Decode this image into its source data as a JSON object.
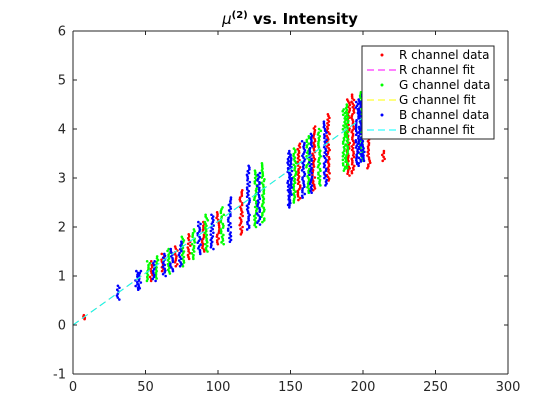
{
  "chart_data": {
    "type": "scatter",
    "title_main": "μ",
    "title_sup": "(2)",
    "title_rest": " vs. Intensity",
    "xlim": [
      0,
      300
    ],
    "ylim": [
      -1,
      6
    ],
    "xticks": [
      0,
      50,
      100,
      150,
      200,
      250,
      300
    ],
    "yticks": [
      -1,
      0,
      1,
      2,
      3,
      4,
      5,
      6
    ],
    "grid": false,
    "legend_position": "top-right",
    "scatter_series": [
      {
        "name": "R channel data",
        "color": "#ff0000",
        "clusters": [
          {
            "x": 8,
            "ymin": 0.12,
            "ymax": 0.2
          },
          {
            "x": 54,
            "ymin": 0.9,
            "ymax": 1.3
          },
          {
            "x": 62,
            "ymin": 1.1,
            "ymax": 1.45
          },
          {
            "x": 71,
            "ymin": 1.2,
            "ymax": 1.6
          },
          {
            "x": 80,
            "ymin": 1.35,
            "ymax": 1.85
          },
          {
            "x": 90,
            "ymin": 1.5,
            "ymax": 2.1
          },
          {
            "x": 100,
            "ymin": 1.65,
            "ymax": 2.3
          },
          {
            "x": 116,
            "ymin": 1.85,
            "ymax": 2.75
          },
          {
            "x": 156,
            "ymin": 2.55,
            "ymax": 3.7
          },
          {
            "x": 166,
            "ymin": 2.75,
            "ymax": 4.05
          },
          {
            "x": 176,
            "ymin": 2.95,
            "ymax": 4.3
          },
          {
            "x": 190,
            "ymin": 3.05,
            "ymax": 4.6
          },
          {
            "x": 193,
            "ymin": 3.1,
            "ymax": 4.7
          },
          {
            "x": 204,
            "ymin": 3.2,
            "ymax": 4.85
          },
          {
            "x": 214,
            "ymin": 3.35,
            "ymax": 3.55
          }
        ]
      },
      {
        "name": "G channel data",
        "color": "#00ff00",
        "clusters": [
          {
            "x": 52,
            "ymin": 0.9,
            "ymax": 1.3
          },
          {
            "x": 58,
            "ymin": 0.95,
            "ymax": 1.4
          },
          {
            "x": 66,
            "ymin": 1.05,
            "ymax": 1.55
          },
          {
            "x": 76,
            "ymin": 1.2,
            "ymax": 1.8
          },
          {
            "x": 83,
            "ymin": 1.35,
            "ymax": 1.95
          },
          {
            "x": 92,
            "ymin": 1.5,
            "ymax": 2.25
          },
          {
            "x": 103,
            "ymin": 1.65,
            "ymax": 2.4
          },
          {
            "x": 126,
            "ymin": 2.0,
            "ymax": 3.15
          },
          {
            "x": 131,
            "ymin": 2.1,
            "ymax": 3.3
          },
          {
            "x": 153,
            "ymin": 2.5,
            "ymax": 3.6
          },
          {
            "x": 162,
            "ymin": 2.7,
            "ymax": 3.85
          },
          {
            "x": 170,
            "ymin": 2.85,
            "ymax": 4.0
          },
          {
            "x": 187,
            "ymin": 3.15,
            "ymax": 4.4
          },
          {
            "x": 189,
            "ymin": 3.2,
            "ymax": 4.5
          },
          {
            "x": 199,
            "ymin": 3.35,
            "ymax": 4.75
          }
        ]
      },
      {
        "name": "B channel data",
        "color": "#0000ff",
        "clusters": [
          {
            "x": 31,
            "ymin": 0.52,
            "ymax": 0.8
          },
          {
            "x": 44,
            "ymin": 0.72,
            "ymax": 1.1
          },
          {
            "x": 46,
            "ymin": 0.75,
            "ymax": 1.1
          },
          {
            "x": 56,
            "ymin": 0.9,
            "ymax": 1.3
          },
          {
            "x": 63,
            "ymin": 1.0,
            "ymax": 1.45
          },
          {
            "x": 68,
            "ymin": 1.1,
            "ymax": 1.55
          },
          {
            "x": 74,
            "ymin": 1.2,
            "ymax": 1.7
          },
          {
            "x": 87,
            "ymin": 1.45,
            "ymax": 2.1
          },
          {
            "x": 96,
            "ymin": 1.55,
            "ymax": 2.25
          },
          {
            "x": 108,
            "ymin": 1.7,
            "ymax": 2.6
          },
          {
            "x": 121,
            "ymin": 1.95,
            "ymax": 3.25
          },
          {
            "x": 128,
            "ymin": 2.05,
            "ymax": 3.1
          },
          {
            "x": 149,
            "ymin": 2.45,
            "ymax": 3.5
          },
          {
            "x": 150,
            "ymin": 2.4,
            "ymax": 3.55
          },
          {
            "x": 159,
            "ymin": 2.6,
            "ymax": 3.75
          },
          {
            "x": 164,
            "ymin": 2.7,
            "ymax": 3.9
          },
          {
            "x": 174,
            "ymin": 2.85,
            "ymax": 4.15
          },
          {
            "x": 196,
            "ymin": 3.25,
            "ymax": 4.55
          },
          {
            "x": 198,
            "ymin": 3.3,
            "ymax": 4.6
          },
          {
            "x": 200,
            "ymin": 3.35,
            "ymax": 4.7
          }
        ]
      }
    ],
    "fit_series": [
      {
        "name": "R channel fit",
        "color": "#ff00ff",
        "dash": "7,4",
        "x": [
          0,
          215
        ],
        "y": [
          0.0,
          4.55
        ]
      },
      {
        "name": "G channel fit",
        "color": "#ffff00",
        "dash": "7,4",
        "x": [
          0,
          215
        ],
        "y": [
          0.0,
          4.55
        ]
      },
      {
        "name": "B channel fit",
        "color": "#00ffff",
        "dash": "7,4",
        "x": [
          0,
          215
        ],
        "y": [
          0.0,
          4.55
        ]
      }
    ],
    "legend": [
      {
        "label": "R channel data",
        "kind": "marker",
        "color": "#ff0000"
      },
      {
        "label": "R channel fit",
        "kind": "line",
        "color": "#ff00ff"
      },
      {
        "label": "G channel data",
        "kind": "marker",
        "color": "#00ff00"
      },
      {
        "label": "G channel fit",
        "kind": "line",
        "color": "#ffff00"
      },
      {
        "label": "B channel data",
        "kind": "marker",
        "color": "#0000ff"
      },
      {
        "label": "B channel fit",
        "kind": "line",
        "color": "#00ffff"
      }
    ]
  }
}
